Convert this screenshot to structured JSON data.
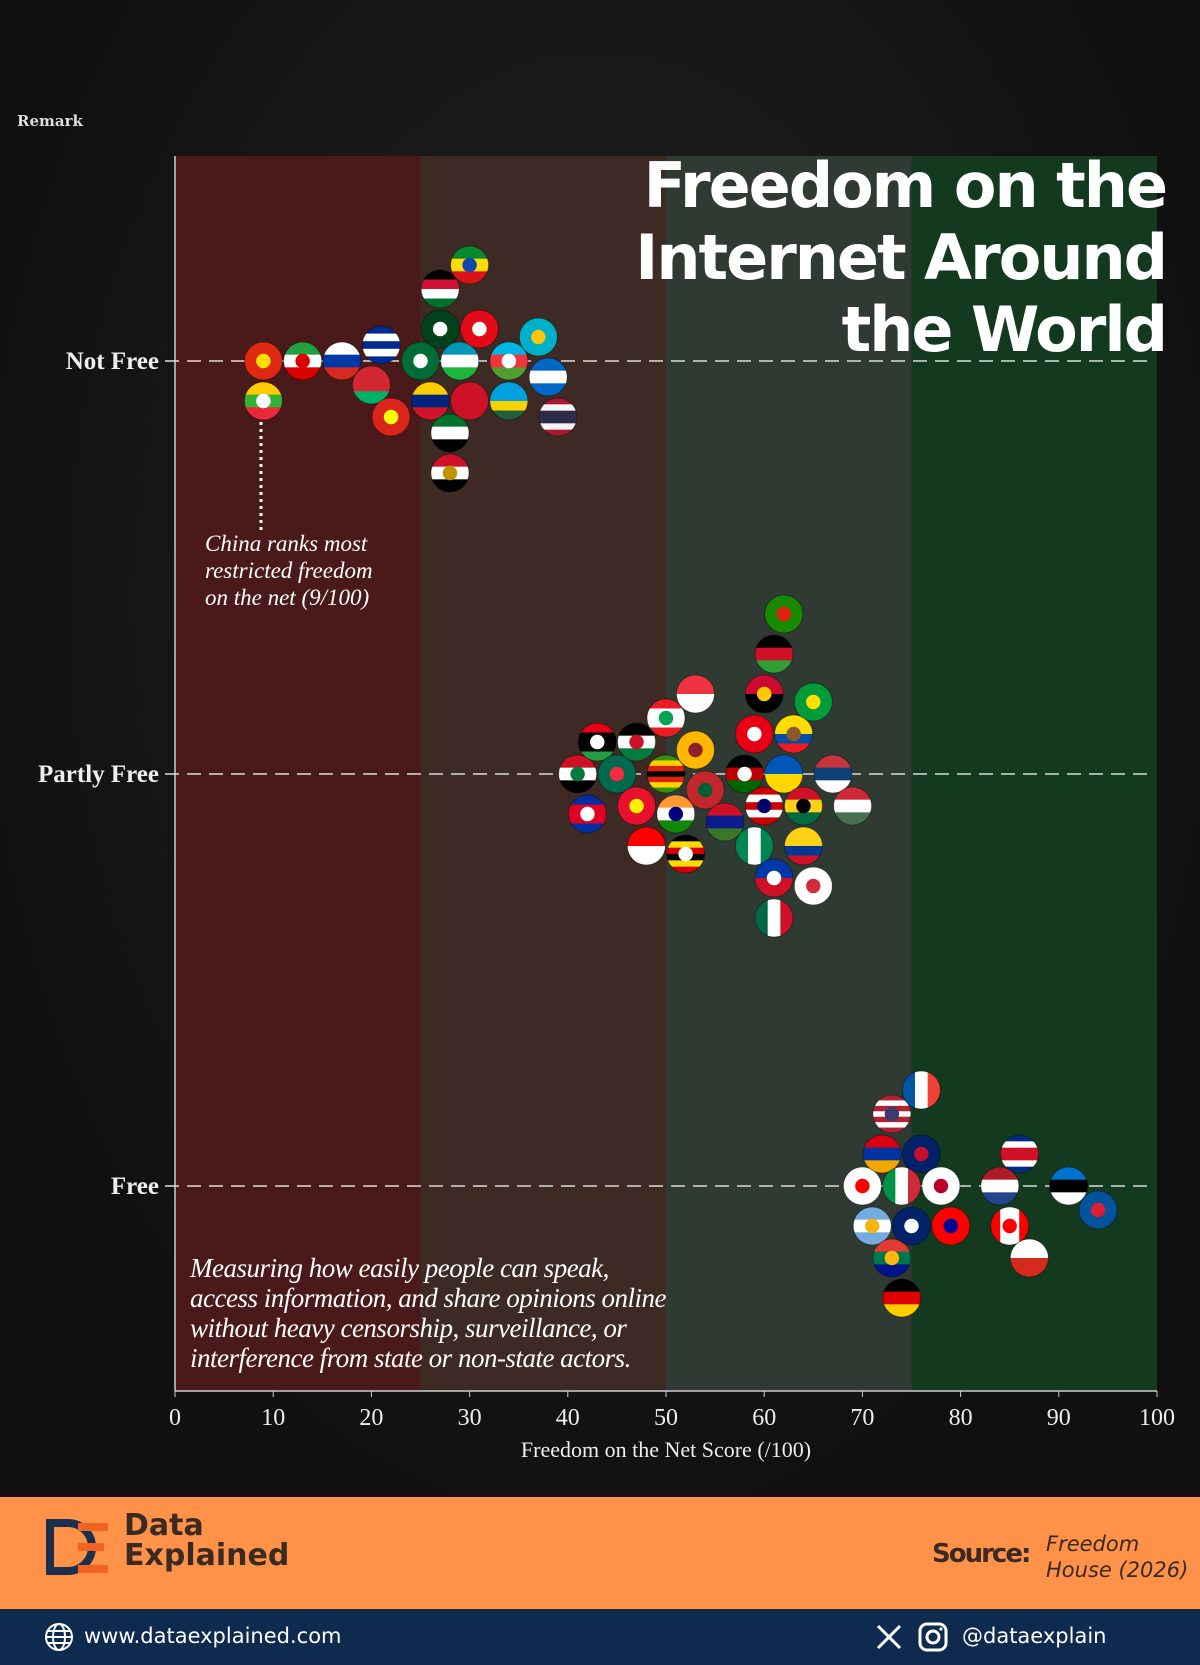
{
  "remark": "Remark",
  "title_lines": [
    "Freedom on the",
    "Internet Around",
    "the World"
  ],
  "annotation_lines": [
    "China ranks most",
    "restricted freedom",
    "on the net (9/100)"
  ],
  "description_lines": [
    "Measuring how easily people can speak,",
    "access information, and share opinions online",
    "without heavy censorship, surveillance, or",
    "interference from state or non-state actors."
  ],
  "footer": {
    "brand_line1": "Data",
    "brand_line2": "Explained",
    "source_label": "Source:",
    "source_line1": "Freedom",
    "source_line2": "House (2026)",
    "website": "www.dataexplained.com",
    "handle": "@dataexplain",
    "colors": {
      "orange": "#ff9149",
      "navy": "#0e2a4f"
    }
  },
  "chart_data": {
    "type": "scatter",
    "xlabel": "Freedom on the Net Score (/100)",
    "xlim": [
      0,
      100
    ],
    "xticks": [
      0,
      10,
      20,
      30,
      40,
      50,
      60,
      70,
      80,
      90,
      100
    ],
    "categories": [
      "Not Free",
      "Partly Free",
      "Free"
    ],
    "bands": [
      {
        "range": [
          0,
          25
        ],
        "color": "#4a1a1a"
      },
      {
        "range": [
          25,
          50
        ],
        "color": "#3d2a24"
      },
      {
        "range": [
          50,
          75
        ],
        "color": "#2f3a33"
      },
      {
        "range": [
          75,
          100
        ],
        "color": "#133a1f"
      }
    ],
    "grid": "dashed horizontal at categories",
    "points": [
      {
        "icon": "flag-china",
        "cat": "Not Free",
        "x": 9,
        "s": [
          "#de2910"
        ],
        "e": "#ffde00"
      },
      {
        "icon": "flag-myanmar",
        "cat": "Not Free",
        "x": 9,
        "s": [
          "#fecb00",
          "#34b233",
          "#ea2839"
        ],
        "e": "#ffffff"
      },
      {
        "icon": "flag-iran",
        "cat": "Not Free",
        "x": 13,
        "s": [
          "#239f40",
          "#ffffff",
          "#da0000"
        ],
        "e": "#da0000"
      },
      {
        "icon": "flag-russia",
        "cat": "Not Free",
        "x": 17,
        "s": [
          "#ffffff",
          "#0039a6",
          "#d52b1e"
        ]
      },
      {
        "icon": "flag-belarus",
        "cat": "Not Free",
        "x": 20,
        "s": [
          "#d22730",
          "#d22730",
          "#00af66"
        ]
      },
      {
        "icon": "flag-cuba",
        "cat": "Not Free",
        "x": 21,
        "s": [
          "#002a8f",
          "#ffffff",
          "#002a8f",
          "#ffffff",
          "#002a8f"
        ]
      },
      {
        "icon": "flag-vietnam",
        "cat": "Not Free",
        "x": 22,
        "s": [
          "#da251d"
        ],
        "e": "#ffff00"
      },
      {
        "icon": "flag-saudi-arabia",
        "cat": "Not Free",
        "x": 25,
        "s": [
          "#006c35"
        ],
        "e": "#ffffff"
      },
      {
        "icon": "flag-venezuela",
        "cat": "Not Free",
        "x": 26,
        "s": [
          "#ffcc00",
          "#00247d",
          "#cf142b"
        ]
      },
      {
        "icon": "flag-pakistan",
        "cat": "Not Free",
        "x": 27,
        "s": [
          "#01411c"
        ],
        "e": "#ffffff"
      },
      {
        "icon": "flag-sudan",
        "cat": "Not Free",
        "x": 27,
        "s": [
          "#000000",
          "#d21034",
          "#ffffff",
          "#007229"
        ]
      },
      {
        "icon": "flag-uae",
        "cat": "Not Free",
        "x": 28,
        "s": [
          "#00732f",
          "#ffffff",
          "#000000"
        ]
      },
      {
        "icon": "flag-egypt",
        "cat": "Not Free",
        "x": 28,
        "s": [
          "#ce1126",
          "#ffffff",
          "#000000"
        ],
        "e": "#c09300"
      },
      {
        "icon": "flag-uzbekistan",
        "cat": "Not Free",
        "x": 29,
        "s": [
          "#0099b5",
          "#ffffff",
          "#1eb53a"
        ]
      },
      {
        "icon": "flag-bahrain",
        "cat": "Not Free",
        "x": 30,
        "s": [
          "#ce1126"
        ]
      },
      {
        "icon": "flag-ethiopia",
        "cat": "Not Free",
        "x": 30,
        "s": [
          "#078930",
          "#fcdd09",
          "#da121a"
        ],
        "e": "#0f47af"
      },
      {
        "icon": "flag-turkey",
        "cat": "Not Free",
        "x": 31,
        "s": [
          "#e30a17"
        ],
        "e": "#ffffff"
      },
      {
        "icon": "flag-azerbaijan",
        "cat": "Not Free",
        "x": 34,
        "s": [
          "#00b5e2",
          "#ef3340",
          "#509e2f"
        ],
        "e": "#ffffff"
      },
      {
        "icon": "flag-rwanda",
        "cat": "Not Free",
        "x": 34,
        "s": [
          "#00a1de",
          "#00a1de",
          "#fad201",
          "#20603d"
        ]
      },
      {
        "icon": "flag-kazakhstan",
        "cat": "Not Free",
        "x": 37,
        "s": [
          "#00afca"
        ],
        "e": "#fec50c"
      },
      {
        "icon": "flag-nicaragua",
        "cat": "Not Free",
        "x": 38,
        "s": [
          "#0067c6",
          "#ffffff",
          "#0067c6"
        ]
      },
      {
        "icon": "flag-thailand",
        "cat": "Not Free",
        "x": 39,
        "s": [
          "#a51931",
          "#f4f5f8",
          "#2d2a4a",
          "#2d2a4a",
          "#f4f5f8",
          "#a51931"
        ]
      },
      {
        "icon": "flag-iraq",
        "cat": "Partly Free",
        "x": 41,
        "s": [
          "#ce1126",
          "#ffffff",
          "#000000"
        ],
        "e": "#007a3d"
      },
      {
        "icon": "flag-cambodia",
        "cat": "Partly Free",
        "x": 42,
        "s": [
          "#032ea1",
          "#e00025",
          "#e00025",
          "#032ea1"
        ],
        "e": "#ffffff"
      },
      {
        "icon": "flag-libya",
        "cat": "Partly Free",
        "x": 43,
        "s": [
          "#e70013",
          "#000000",
          "#000000",
          "#239e46"
        ],
        "e": "#ffffff"
      },
      {
        "icon": "flag-bangladesh",
        "cat": "Partly Free",
        "x": 45,
        "s": [
          "#006a4e"
        ],
        "e": "#f42a41"
      },
      {
        "icon": "flag-kyrgyzstan",
        "cat": "Partly Free",
        "x": 47,
        "s": [
          "#e8112d"
        ],
        "e": "#ffef00"
      },
      {
        "icon": "flag-jordan",
        "cat": "Partly Free",
        "x": 47,
        "s": [
          "#000000",
          "#ffffff",
          "#007a3d"
        ],
        "e": "#ce1126"
      },
      {
        "icon": "flag-indonesia",
        "cat": "Partly Free",
        "x": 48,
        "s": [
          "#ff0000",
          "#ffffff"
        ]
      },
      {
        "icon": "flag-zimbabwe",
        "cat": "Partly Free",
        "x": 50,
        "s": [
          "#319208",
          "#ffd200",
          "#de2010",
          "#000000",
          "#de2010",
          "#ffd200",
          "#319208"
        ]
      },
      {
        "icon": "flag-lebanon",
        "cat": "Partly Free",
        "x": 50,
        "s": [
          "#ed1c24",
          "#ffffff",
          "#ffffff",
          "#ed1c24"
        ],
        "e": "#00a651"
      },
      {
        "icon": "flag-india",
        "cat": "Partly Free",
        "x": 51,
        "s": [
          "#ff9933",
          "#ffffff",
          "#138808"
        ],
        "e": "#000080"
      },
      {
        "icon": "flag-uganda",
        "cat": "Partly Free",
        "x": 52,
        "s": [
          "#000000",
          "#fcdc04",
          "#d90000",
          "#000000",
          "#fcdc04",
          "#d90000"
        ],
        "e": "#ffffff"
      },
      {
        "icon": "flag-sri-lanka",
        "cat": "Partly Free",
        "x": 53,
        "s": [
          "#ffb700"
        ],
        "e": "#8d2029"
      },
      {
        "icon": "flag-singapore",
        "cat": "Partly Free",
        "x": 53,
        "s": [
          "#ef3340",
          "#ffffff"
        ]
      },
      {
        "icon": "flag-morocco",
        "cat": "Partly Free",
        "x": 54,
        "s": [
          "#c1272d"
        ],
        "e": "#006233"
      },
      {
        "icon": "flag-gambia",
        "cat": "Partly Free",
        "x": 56,
        "s": [
          "#ce1126",
          "#0c1c8c",
          "#3a7728"
        ]
      },
      {
        "icon": "flag-kenya",
        "cat": "Partly Free",
        "x": 58,
        "s": [
          "#000000",
          "#bb0000",
          "#006600"
        ],
        "e": "#ffffff"
      },
      {
        "icon": "flag-tunisia",
        "cat": "Partly Free",
        "x": 59,
        "s": [
          "#e70013"
        ],
        "e": "#ffffff"
      },
      {
        "icon": "flag-nigeria",
        "cat": "Partly Free",
        "x": 59,
        "d": "v",
        "s": [
          "#008751",
          "#ffffff",
          "#008751"
        ]
      },
      {
        "icon": "flag-malaysia",
        "cat": "Partly Free",
        "x": 60,
        "s": [
          "#cc0001",
          "#ffffff",
          "#cc0001",
          "#ffffff",
          "#cc0001"
        ],
        "e": "#010066"
      },
      {
        "icon": "flag-angola",
        "cat": "Partly Free",
        "x": 60,
        "s": [
          "#cc092f",
          "#000000"
        ],
        "e": "#ffcb00"
      },
      {
        "icon": "flag-philippines",
        "cat": "Partly Free",
        "x": 61,
        "s": [
          "#0038a8",
          "#ce1126"
        ],
        "e": "#ffffff"
      },
      {
        "icon": "flag-malawi",
        "cat": "Partly Free",
        "x": 61,
        "s": [
          "#000000",
          "#ce1126",
          "#339e35"
        ]
      },
      {
        "icon": "flag-mexico",
        "cat": "Partly Free",
        "x": 61,
        "d": "v",
        "s": [
          "#006847",
          "#ffffff",
          "#ce1126"
        ]
      },
      {
        "icon": "flag-ukraine",
        "cat": "Partly Free",
        "x": 62,
        "s": [
          "#0057b7",
          "#ffd700"
        ]
      },
      {
        "icon": "flag-zambia",
        "cat": "Partly Free",
        "x": 62,
        "s": [
          "#198a00"
        ],
        "e": "#de2010"
      },
      {
        "icon": "flag-ecuador",
        "cat": "Partly Free",
        "x": 63,
        "s": [
          "#ffdd00",
          "#ffdd00",
          "#034ea2",
          "#ed1c24"
        ],
        "e": "#8b5a2b"
      },
      {
        "icon": "flag-ghana",
        "cat": "Partly Free",
        "x": 64,
        "s": [
          "#ce1126",
          "#fcd116",
          "#006b3f"
        ],
        "e": "#000000"
      },
      {
        "icon": "flag-colombia",
        "cat": "Partly Free",
        "x": 64,
        "s": [
          "#fcd116",
          "#fcd116",
          "#003893",
          "#ce1126"
        ]
      },
      {
        "icon": "flag-brazil",
        "cat": "Partly Free",
        "x": 65,
        "s": [
          "#009c3b"
        ],
        "e": "#ffdf00"
      },
      {
        "icon": "flag-south-korea",
        "cat": "Partly Free",
        "x": 65,
        "s": [
          "#ffffff"
        ],
        "e": "#cd2e3a"
      },
      {
        "icon": "flag-serbia",
        "cat": "Partly Free",
        "x": 67,
        "s": [
          "#c6363c",
          "#0c4076",
          "#ffffff"
        ]
      },
      {
        "icon": "flag-hungary",
        "cat": "Partly Free",
        "x": 69,
        "s": [
          "#ce2939",
          "#ffffff",
          "#477050"
        ]
      },
      {
        "icon": "flag-georgia",
        "cat": "Free",
        "x": 70,
        "s": [
          "#ffffff"
        ],
        "e": "#ff0000"
      },
      {
        "icon": "flag-argentina",
        "cat": "Free",
        "x": 71,
        "s": [
          "#74acdf",
          "#ffffff",
          "#74acdf"
        ],
        "e": "#f6b40e"
      },
      {
        "icon": "flag-armenia",
        "cat": "Free",
        "x": 72,
        "s": [
          "#d90012",
          "#0033a0",
          "#f2a800"
        ]
      },
      {
        "icon": "flag-south-africa",
        "cat": "Free",
        "x": 73,
        "s": [
          "#e03c31",
          "#007749",
          "#001489"
        ],
        "e": "#ffb612"
      },
      {
        "icon": "flag-united-states",
        "cat": "Free",
        "x": 73,
        "s": [
          "#b22234",
          "#ffffff",
          "#b22234",
          "#ffffff",
          "#b22234",
          "#ffffff",
          "#b22234"
        ],
        "e": "#3c3b6e"
      },
      {
        "icon": "flag-italy",
        "cat": "Free",
        "x": 74,
        "d": "v",
        "s": [
          "#009246",
          "#ffffff",
          "#ce2b37"
        ]
      },
      {
        "icon": "flag-germany",
        "cat": "Free",
        "x": 74,
        "s": [
          "#000000",
          "#dd0000",
          "#ffce00"
        ]
      },
      {
        "icon": "flag-australia",
        "cat": "Free",
        "x": 75,
        "s": [
          "#012169"
        ],
        "e": "#ffffff"
      },
      {
        "icon": "flag-united-kingdom",
        "cat": "Free",
        "x": 76,
        "s": [
          "#012169"
        ],
        "e": "#c8102e"
      },
      {
        "icon": "flag-france",
        "cat": "Free",
        "x": 76,
        "d": "v",
        "s": [
          "#0055a4",
          "#ffffff",
          "#ef4135"
        ]
      },
      {
        "icon": "flag-japan",
        "cat": "Free",
        "x": 78,
        "s": [
          "#ffffff"
        ],
        "e": "#bc002d"
      },
      {
        "icon": "flag-taiwan",
        "cat": "Free",
        "x": 79,
        "s": [
          "#fe0000"
        ],
        "e": "#000095"
      },
      {
        "icon": "flag-netherlands",
        "cat": "Free",
        "x": 84,
        "s": [
          "#ae1c28",
          "#ffffff",
          "#21468b"
        ]
      },
      {
        "icon": "flag-canada",
        "cat": "Free",
        "x": 85,
        "d": "v",
        "s": [
          "#ff0000",
          "#ffffff",
          "#ffffff",
          "#ff0000"
        ],
        "e": "#ff0000"
      },
      {
        "icon": "flag-costa-rica",
        "cat": "Free",
        "x": 86,
        "s": [
          "#002b7f",
          "#ffffff",
          "#ce1126",
          "#ce1126",
          "#ffffff",
          "#002b7f"
        ]
      },
      {
        "icon": "flag-chile",
        "cat": "Free",
        "x": 87,
        "s": [
          "#ffffff",
          "#d52b1e"
        ]
      },
      {
        "icon": "flag-estonia",
        "cat": "Free",
        "x": 91,
        "s": [
          "#0072ce",
          "#000000",
          "#ffffff"
        ]
      },
      {
        "icon": "flag-iceland",
        "cat": "Free",
        "x": 94,
        "s": [
          "#02529c"
        ],
        "e": "#dc1e35"
      }
    ]
  }
}
